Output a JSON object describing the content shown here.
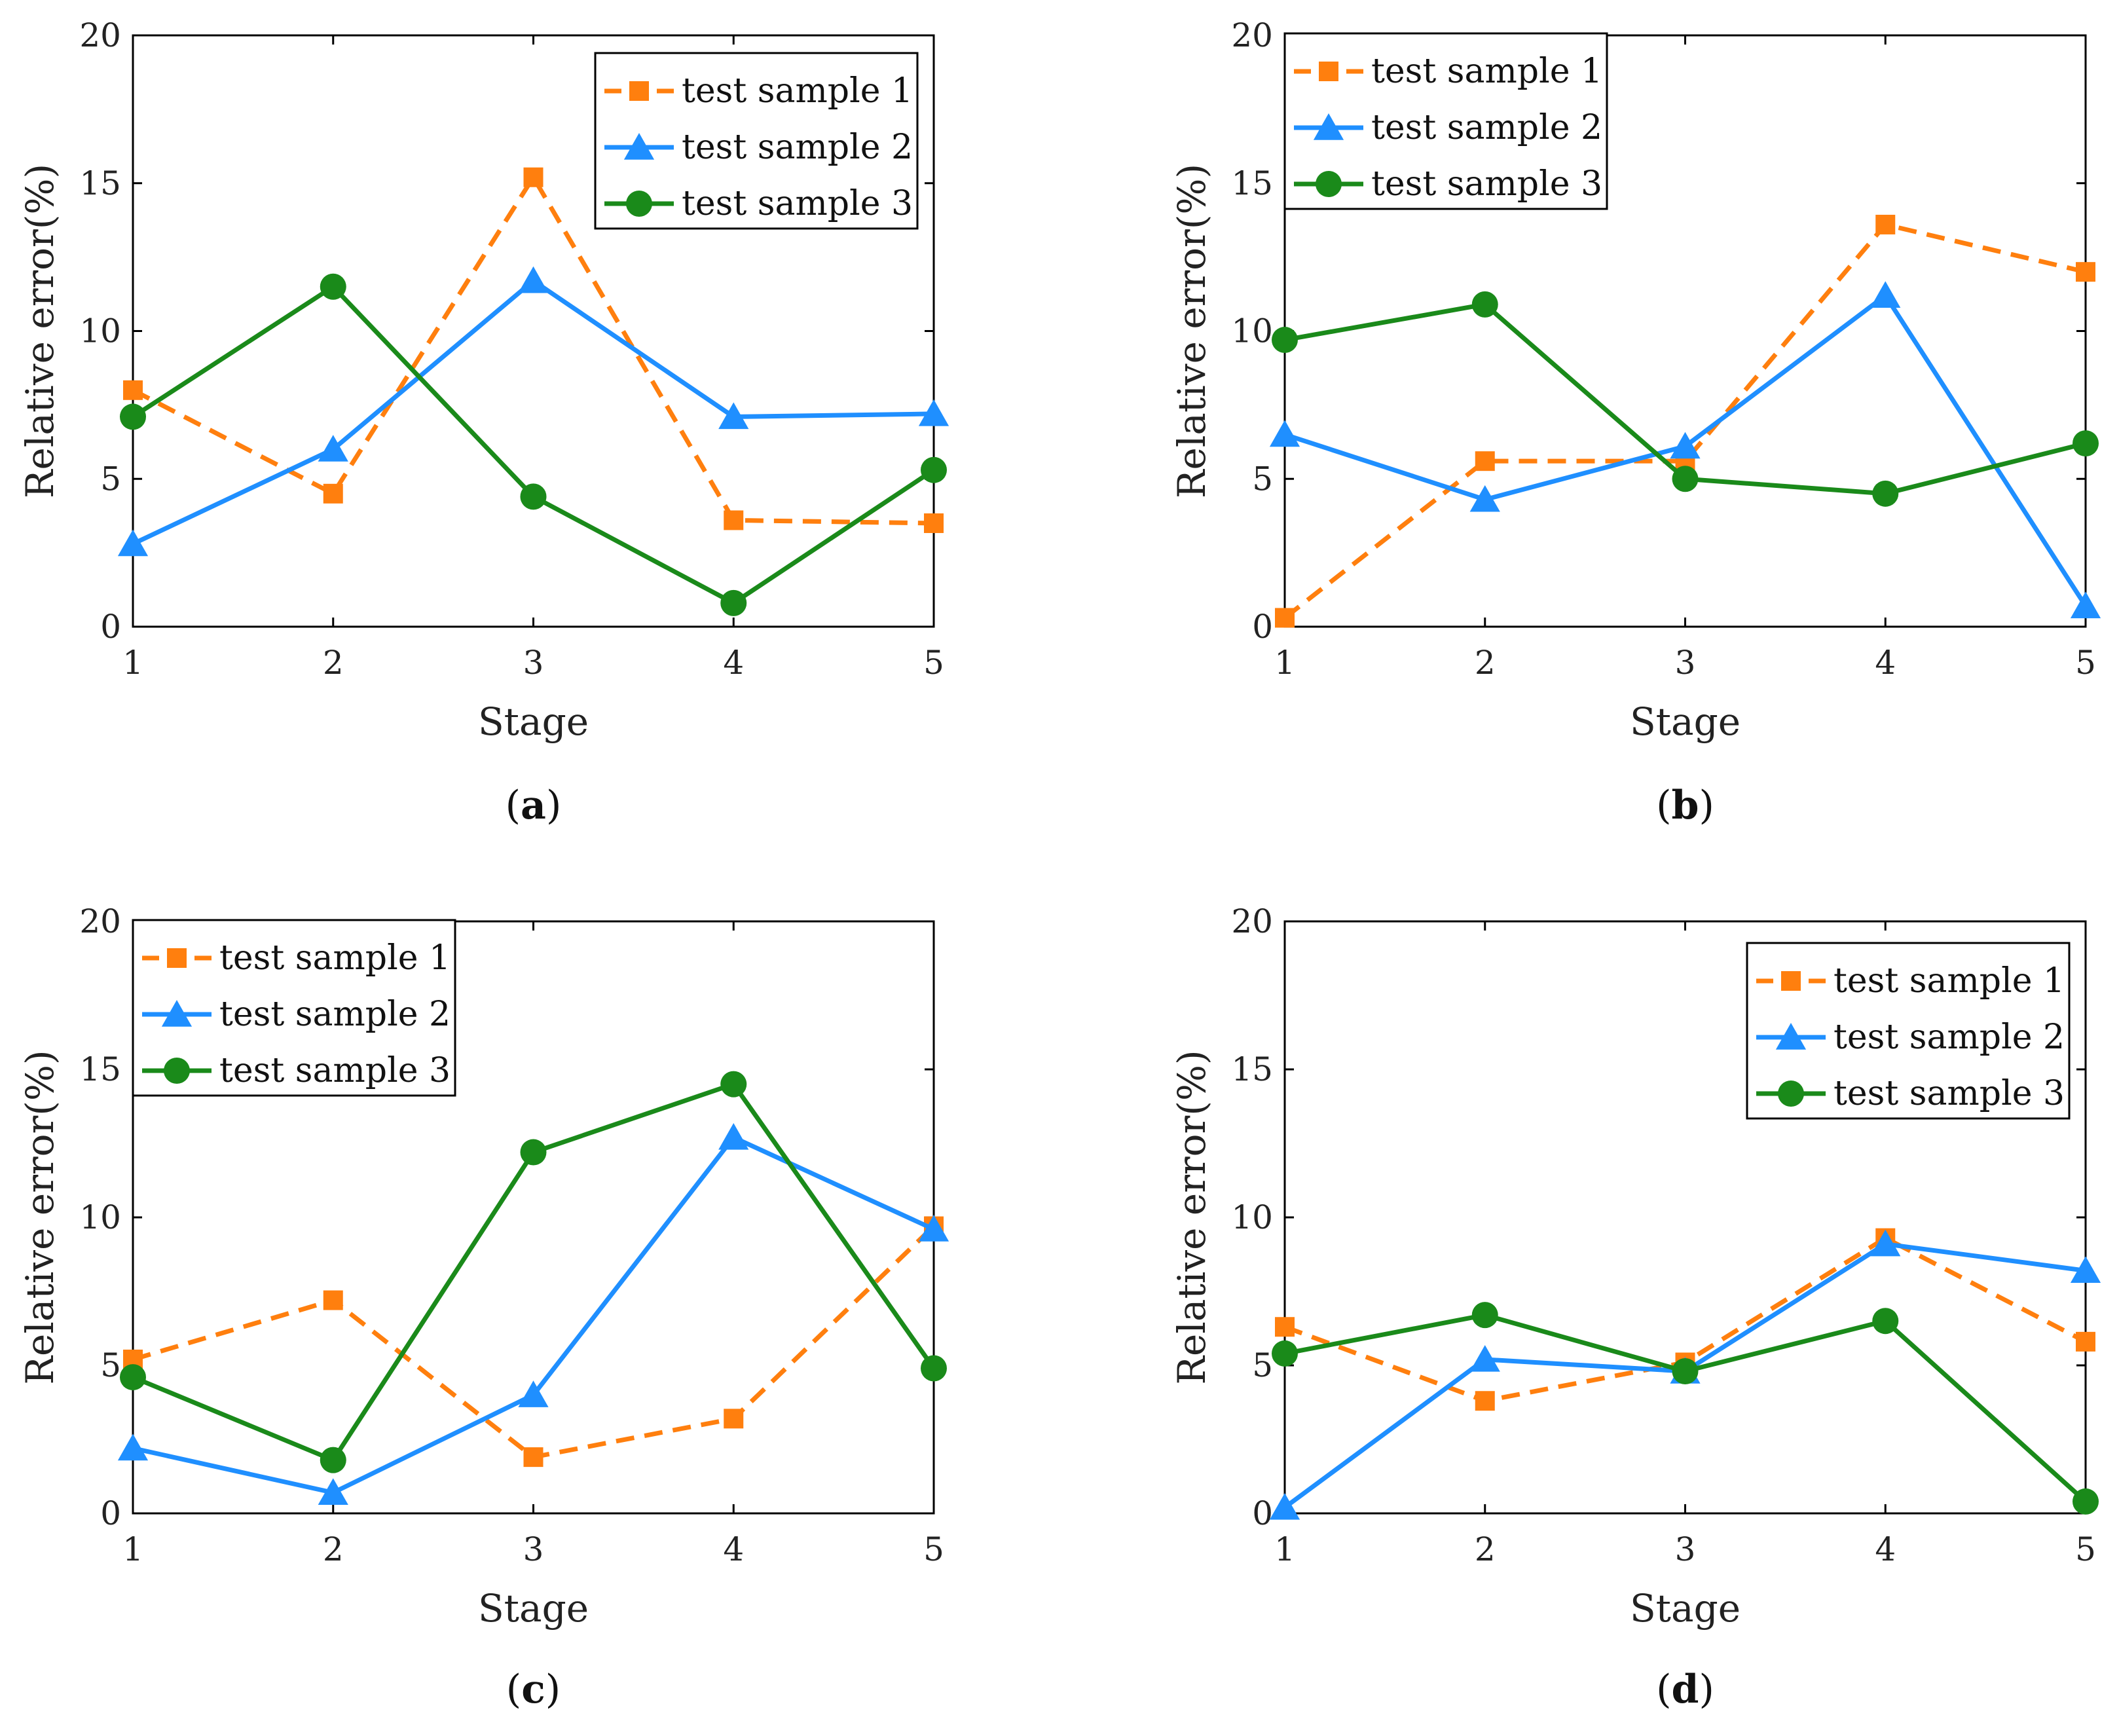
{
  "colors": {
    "sample1": "#ff7f0e",
    "sample2": "#1f8fff",
    "sample3": "#1a8a1a",
    "axis": "#000000"
  },
  "chart_data": [
    {
      "type": "line",
      "panel_label": "a",
      "xlabel": "Stage",
      "ylabel": "Relative error(%)",
      "x": [
        1,
        2,
        3,
        4,
        5
      ],
      "xlim": [
        1,
        5
      ],
      "ylim": [
        0,
        20
      ],
      "yticks": [
        0,
        5,
        10,
        15,
        20
      ],
      "legend_position": "top-right",
      "series": [
        {
          "name": "test sample 1",
          "values": [
            8.0,
            4.5,
            15.2,
            3.6,
            3.5
          ],
          "style": "dashed",
          "marker": "square"
        },
        {
          "name": "test sample 2",
          "values": [
            2.8,
            6.0,
            11.7,
            7.1,
            7.2
          ],
          "style": "solid",
          "marker": "triangle"
        },
        {
          "name": "test sample 3",
          "values": [
            7.1,
            11.5,
            4.4,
            0.8,
            5.3
          ],
          "style": "solid",
          "marker": "circle"
        }
      ]
    },
    {
      "type": "line",
      "panel_label": "b",
      "xlabel": "Stage",
      "ylabel": "Relative error(%)",
      "x": [
        1,
        2,
        3,
        4,
        5
      ],
      "xlim": [
        1,
        5
      ],
      "ylim": [
        0,
        20
      ],
      "yticks": [
        0,
        5,
        10,
        15,
        20
      ],
      "legend_position": "top-left",
      "series": [
        {
          "name": "test sample 1",
          "values": [
            0.3,
            5.6,
            5.6,
            13.6,
            12.0
          ],
          "style": "dashed",
          "marker": "square"
        },
        {
          "name": "test sample 2",
          "values": [
            6.5,
            4.3,
            6.1,
            11.2,
            0.7
          ],
          "style": "solid",
          "marker": "triangle"
        },
        {
          "name": "test sample 3",
          "values": [
            9.7,
            10.9,
            5.0,
            4.5,
            6.2
          ],
          "style": "solid",
          "marker": "circle"
        }
      ]
    },
    {
      "type": "line",
      "panel_label": "c",
      "xlabel": "Stage",
      "ylabel": "Relative error(%)",
      "x": [
        1,
        2,
        3,
        4,
        5
      ],
      "xlim": [
        1,
        5
      ],
      "ylim": [
        0,
        20
      ],
      "yticks": [
        0,
        5,
        10,
        15,
        20
      ],
      "legend_position": "top-left",
      "series": [
        {
          "name": "test sample 1",
          "values": [
            5.2,
            7.2,
            1.9,
            3.2,
            9.7
          ],
          "style": "dashed",
          "marker": "square"
        },
        {
          "name": "test sample 2",
          "values": [
            2.2,
            0.7,
            4.0,
            12.7,
            9.6
          ],
          "style": "solid",
          "marker": "triangle"
        },
        {
          "name": "test sample 3",
          "values": [
            4.6,
            1.8,
            12.2,
            14.5,
            4.9
          ],
          "style": "solid",
          "marker": "circle"
        }
      ]
    },
    {
      "type": "line",
      "panel_label": "d",
      "xlabel": "Stage",
      "ylabel": "Relative error(%)",
      "x": [
        1,
        2,
        3,
        4,
        5
      ],
      "xlim": [
        1,
        5
      ],
      "ylim": [
        0,
        20
      ],
      "yticks": [
        0,
        5,
        10,
        15,
        20
      ],
      "legend_position": "top-right",
      "series": [
        {
          "name": "test sample 1",
          "values": [
            6.3,
            3.8,
            5.1,
            9.3,
            5.8
          ],
          "style": "dashed",
          "marker": "square"
        },
        {
          "name": "test sample 2",
          "values": [
            0.2,
            5.2,
            4.8,
            9.1,
            8.2
          ],
          "style": "solid",
          "marker": "triangle"
        },
        {
          "name": "test sample 3",
          "values": [
            5.4,
            6.7,
            4.8,
            6.5,
            0.4
          ],
          "style": "solid",
          "marker": "circle"
        }
      ]
    }
  ]
}
